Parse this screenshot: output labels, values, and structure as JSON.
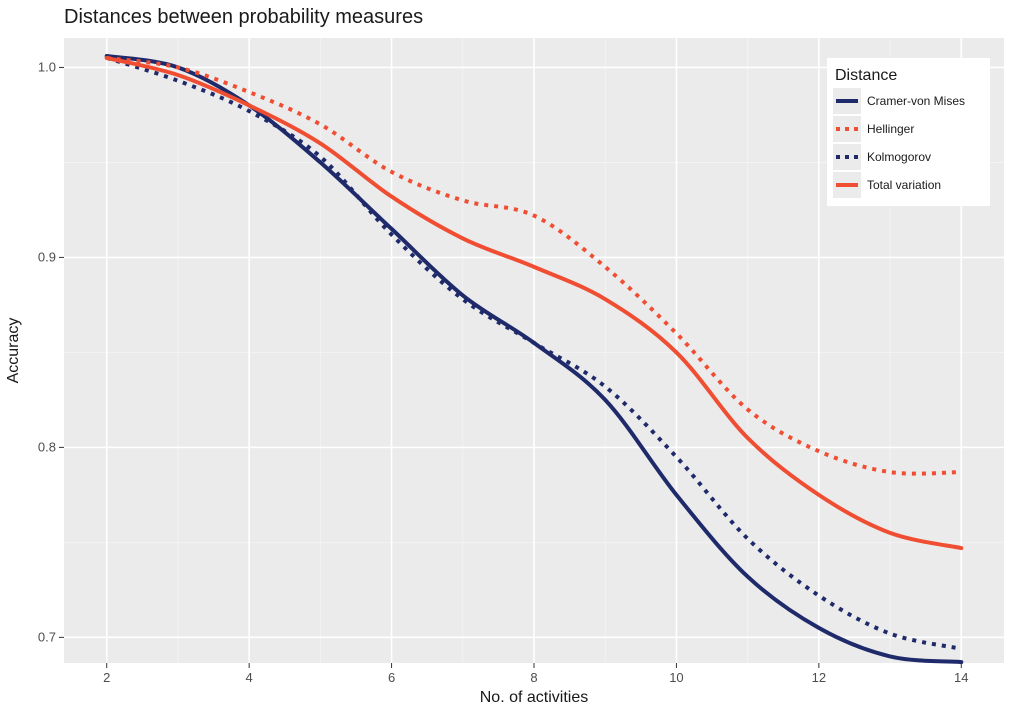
{
  "chart_data": {
    "type": "line",
    "title": "Distances between probability measures",
    "xlabel": "No. of activities",
    "ylabel": "Accuracy",
    "xlim": [
      1.4,
      14.6
    ],
    "ylim": [
      0.6865,
      1.0155
    ],
    "x_ticks": [
      2,
      4,
      6,
      8,
      10,
      12,
      14
    ],
    "y_ticks": [
      0.7,
      0.8,
      0.9,
      1.0
    ],
    "x_tick_labels": [
      "2",
      "4",
      "6",
      "8",
      "10",
      "12",
      "14"
    ],
    "y_tick_labels": [
      "0.7",
      "0.8",
      "0.9",
      "1.0"
    ],
    "grid": true,
    "legend": {
      "title": "Distance",
      "placement": "top-right"
    },
    "series": [
      {
        "name": "Cramer-von Mises",
        "color": "#1f2a6b",
        "style": "solid",
        "x": [
          2,
          3,
          4,
          5,
          6,
          7,
          8,
          9,
          10,
          11,
          12,
          13,
          14
        ],
        "y": [
          1.006,
          1.0,
          0.98,
          0.95,
          0.915,
          0.88,
          0.855,
          0.825,
          0.775,
          0.732,
          0.705,
          0.69,
          0.687
        ]
      },
      {
        "name": "Hellinger",
        "color": "#f04e33",
        "style": "dotted",
        "x": [
          2,
          3,
          4,
          5,
          6,
          7,
          8,
          9,
          10,
          11,
          12,
          13,
          14
        ],
        "y": [
          1.005,
          1.0,
          0.987,
          0.97,
          0.945,
          0.93,
          0.922,
          0.895,
          0.86,
          0.82,
          0.798,
          0.787,
          0.787
        ]
      },
      {
        "name": "Kolmogorov",
        "color": "#1f2a6b",
        "style": "dotted",
        "x": [
          2,
          3,
          4,
          5,
          6,
          7,
          8,
          9,
          10,
          11,
          12,
          13,
          14
        ],
        "y": [
          1.005,
          0.993,
          0.977,
          0.953,
          0.912,
          0.878,
          0.855,
          0.832,
          0.795,
          0.752,
          0.722,
          0.702,
          0.694
        ]
      },
      {
        "name": "Total variation",
        "color": "#f04e33",
        "style": "solid",
        "x": [
          2,
          3,
          4,
          5,
          6,
          7,
          8,
          9,
          10,
          11,
          12,
          13,
          14
        ],
        "y": [
          1.005,
          0.996,
          0.98,
          0.96,
          0.932,
          0.91,
          0.895,
          0.878,
          0.85,
          0.805,
          0.775,
          0.755,
          0.747
        ]
      }
    ]
  }
}
